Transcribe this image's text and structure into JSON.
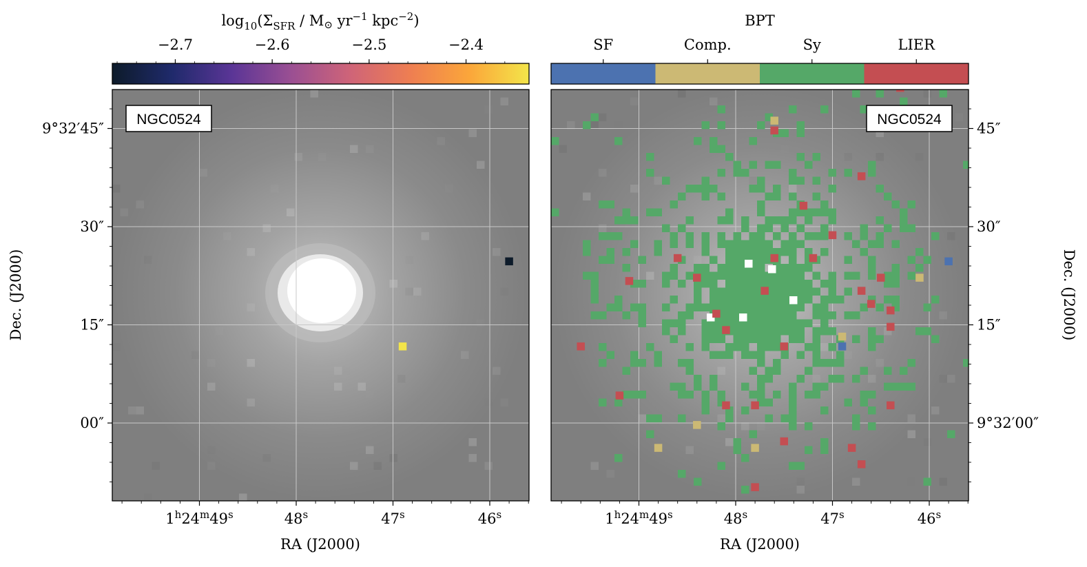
{
  "figure": {
    "left_panel": {
      "label": "NGC0524",
      "colorbar": {
        "title_parts": {
          "pre": "log",
          "sub1": "10",
          "mid": "(Σ",
          "sub2": "SFR",
          "post": " / M",
          "sun": "⊙",
          "yr": " yr",
          "exp1": "−1",
          "kpc": " kpc",
          "exp2": "−2",
          "close": ")"
        },
        "ticks": [
          "−2.7",
          "−2.6",
          "−2.5",
          "−2.4"
        ],
        "tick_values": [
          -2.7,
          -2.6,
          -2.5,
          -2.4
        ],
        "range": [
          -2.765,
          -2.335
        ],
        "colors": [
          "#0d1b2a",
          "#1f2a6b",
          "#5a3596",
          "#9a4f93",
          "#cf6478",
          "#ee7e52",
          "#fba63a",
          "#f3e54a"
        ]
      },
      "xlabel": "RA (J2000)",
      "ylabel": "Dec. (J2000)",
      "xticks": [
        {
          "h": "1",
          "hs": "h",
          "m": "24",
          "ms": "m",
          "s": "49",
          "ss": "s"
        },
        {
          "s": "48",
          "ss": "s"
        },
        {
          "s": "47",
          "ss": "s"
        },
        {
          "s": "46",
          "ss": "s"
        }
      ],
      "yticks": [
        "9°32′45″",
        "30″",
        "15″",
        "00″"
      ]
    },
    "right_panel": {
      "label": "NGC0524",
      "colorbar": {
        "title": "BPT",
        "categories": [
          "SF",
          "Comp.",
          "Sy",
          "LIER"
        ],
        "colors": [
          "#4c72b0",
          "#ccb974",
          "#55a868",
          "#c44e52"
        ]
      },
      "xlabel": "RA (J2000)",
      "ylabel": "Dec. (J2000)",
      "xticks": [
        {
          "h": "1",
          "hs": "h",
          "m": "24",
          "ms": "m",
          "s": "49",
          "ss": "s"
        },
        {
          "s": "48",
          "ss": "s"
        },
        {
          "s": "47",
          "ss": "s"
        },
        {
          "s": "46",
          "ss": "s"
        }
      ],
      "yticks": [
        "45″",
        "30″",
        "15″",
        "9°32′00″"
      ]
    }
  },
  "chart_data": [
    {
      "type": "heatmap",
      "title": "log10(ΣSFR / M⊙ yr−1 kpc−2)",
      "object": "NGC0524",
      "xlabel": "RA (J2000)",
      "ylabel": "Dec. (J2000)",
      "points": [
        {
          "ra_s": 45.8,
          "dec_arcsec": 24.7,
          "value": -2.76
        },
        {
          "ra_s": 46.9,
          "dec_arcsec": 11.7,
          "value": -2.34
        }
      ]
    },
    {
      "type": "heatmap",
      "title": "BPT",
      "object": "NGC0524",
      "xlabel": "RA (J2000)",
      "ylabel": "Dec. (J2000)",
      "categories": [
        "SF",
        "Comp.",
        "Sy",
        "LIER"
      ],
      "points": [
        {
          "ra_s": 45.8,
          "dec_arcsec": 24.7,
          "class": "SF"
        },
        {
          "ra_s": 46.9,
          "dec_arcsec": 11.7,
          "class": "SF"
        },
        {
          "ra_s": 47.6,
          "dec_arcsec": 46.2,
          "class": "Comp."
        },
        {
          "ra_s": 46.9,
          "dec_arcsec": 13.2,
          "class": "Comp."
        },
        {
          "ra_s": 46.1,
          "dec_arcsec": 22.2,
          "class": "Comp."
        },
        {
          "ra_s": 48.4,
          "dec_arcsec": -0.3,
          "class": "Comp."
        },
        {
          "ra_s": 48.8,
          "dec_arcsec": -3.8,
          "class": "Comp."
        },
        {
          "ra_s": 47.8,
          "dec_arcsec": -3.8,
          "class": "Comp."
        },
        {
          "ra_s": 47.6,
          "dec_arcsec": 44.7,
          "class": "LIER"
        },
        {
          "ra_s": 47.3,
          "dec_arcsec": 33.2,
          "class": "LIER"
        },
        {
          "ra_s": 46.7,
          "dec_arcsec": 37.7,
          "class": "LIER"
        },
        {
          "ra_s": 47.0,
          "dec_arcsec": 28.7,
          "class": "LIER"
        },
        {
          "ra_s": 46.3,
          "dec_arcsec": 51.2,
          "class": "LIER"
        },
        {
          "ra_s": 48.4,
          "dec_arcsec": 22.2,
          "class": "LIER"
        },
        {
          "ra_s": 48.6,
          "dec_arcsec": 25.2,
          "class": "LIER"
        },
        {
          "ra_s": 47.6,
          "dec_arcsec": 25.2,
          "class": "LIER"
        },
        {
          "ra_s": 47.2,
          "dec_arcsec": 25.2,
          "class": "LIER"
        },
        {
          "ra_s": 47.7,
          "dec_arcsec": 20.2,
          "class": "LIER"
        },
        {
          "ra_s": 48.2,
          "dec_arcsec": 16.7,
          "class": "LIER"
        },
        {
          "ra_s": 48.1,
          "dec_arcsec": 14.2,
          "class": "LIER"
        },
        {
          "ra_s": 47.5,
          "dec_arcsec": 11.7,
          "class": "LIER"
        },
        {
          "ra_s": 46.7,
          "dec_arcsec": 20.2,
          "class": "LIER"
        },
        {
          "ra_s": 46.6,
          "dec_arcsec": 18.2,
          "class": "LIER"
        },
        {
          "ra_s": 46.5,
          "dec_arcsec": 22.2,
          "class": "LIER"
        },
        {
          "ra_s": 46.4,
          "dec_arcsec": 17.2,
          "class": "LIER"
        },
        {
          "ra_s": 46.4,
          "dec_arcsec": 14.7,
          "class": "LIER"
        },
        {
          "ra_s": 49.6,
          "dec_arcsec": 11.7,
          "class": "LIER"
        },
        {
          "ra_s": 49.2,
          "dec_arcsec": 4.2,
          "class": "LIER"
        },
        {
          "ra_s": 48.1,
          "dec_arcsec": 2.7,
          "class": "LIER"
        },
        {
          "ra_s": 47.8,
          "dec_arcsec": 2.7,
          "class": "LIER"
        },
        {
          "ra_s": 46.4,
          "dec_arcsec": 2.7,
          "class": "LIER"
        },
        {
          "ra_s": 47.5,
          "dec_arcsec": -2.8,
          "class": "LIER"
        },
        {
          "ra_s": 46.8,
          "dec_arcsec": -3.8,
          "class": "LIER"
        },
        {
          "ra_s": 46.7,
          "dec_arcsec": -6.3,
          "class": "LIER"
        },
        {
          "ra_s": 47.8,
          "dec_arcsec": -9.8,
          "class": "LIER"
        },
        {
          "ra_s": 49.1,
          "dec_arcsec": 21.7,
          "class": "LIER"
        }
      ],
      "note": "Remaining classified spaxels are Sy (green), filling the central region and scattered across the disk."
    }
  ]
}
